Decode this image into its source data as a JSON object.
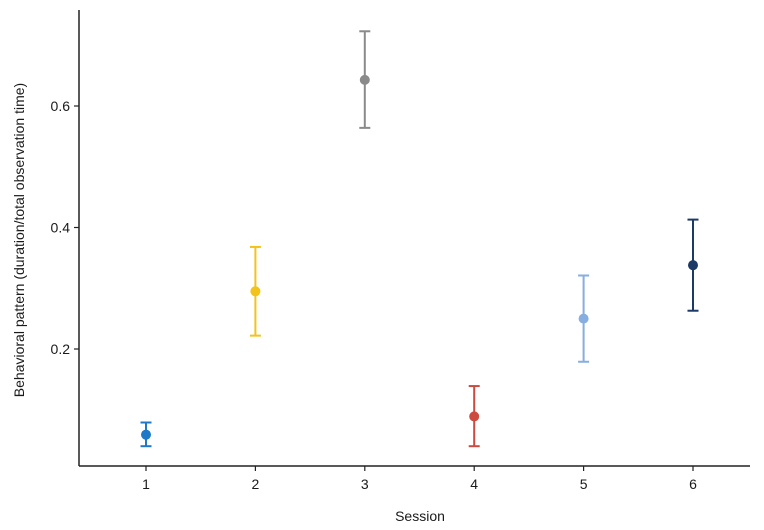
{
  "chart_data": {
    "type": "scatter",
    "xlabel": "Session",
    "ylabel": "Behavioral pattern (duration/total observation time)",
    "categories": [
      "1",
      "2",
      "3",
      "4",
      "5",
      "6"
    ],
    "points": [
      {
        "x": "1",
        "y": 0.059,
        "ymin": 0.04,
        "ymax": 0.079,
        "color": "#1f78c8"
      },
      {
        "x": "2",
        "y": 0.295,
        "ymin": 0.222,
        "ymax": 0.368,
        "color": "#f2c31b"
      },
      {
        "x": "3",
        "y": 0.643,
        "ymin": 0.564,
        "ymax": 0.723,
        "color": "#8a8a8a"
      },
      {
        "x": "4",
        "y": 0.089,
        "ymin": 0.04,
        "ymax": 0.139,
        "color": "#cc4a3f"
      },
      {
        "x": "5",
        "y": 0.25,
        "ymin": 0.179,
        "ymax": 0.321,
        "color": "#86aee0"
      },
      {
        "x": "6",
        "y": 0.338,
        "ymin": 0.263,
        "ymax": 0.413,
        "color": "#1b3a66"
      }
    ],
    "yticks": [
      0.2,
      0.4,
      0.6
    ],
    "ytick_labels": [
      "0.2",
      "0.4",
      "0.6"
    ],
    "ylim": [
      0.02,
      0.76
    ],
    "grid": false,
    "legend": "none"
  }
}
